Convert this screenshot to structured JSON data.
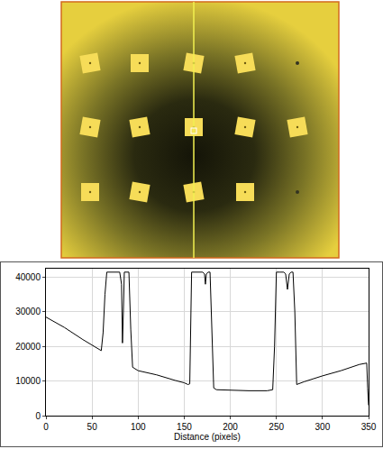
{
  "chart_data": {
    "type": "line",
    "x_label": "Distance (pixels)",
    "x": [
      0,
      20,
      40,
      58,
      60,
      62,
      64,
      66,
      68,
      72,
      76,
      80,
      82,
      83,
      84,
      85,
      86,
      88,
      90,
      92,
      94,
      100,
      120,
      140,
      150,
      154,
      156,
      158,
      162,
      166,
      170,
      172,
      173,
      174,
      176,
      178,
      180,
      182,
      185,
      200,
      220,
      240,
      246,
      248,
      250,
      254,
      258,
      260,
      262,
      264,
      266,
      268,
      270,
      272,
      280,
      300,
      320,
      340,
      348,
      349,
      350
    ],
    "values": [
      28500,
      25500,
      22000,
      19000,
      18800,
      24000,
      35000,
      41500,
      41500,
      41500,
      41500,
      41500,
      38000,
      21000,
      30000,
      41500,
      41500,
      41500,
      41500,
      25000,
      14000,
      13000,
      11800,
      10200,
      9500,
      9000,
      9200,
      41500,
      41500,
      41500,
      41500,
      41000,
      38000,
      41000,
      41500,
      41500,
      25000,
      8000,
      7500,
      7300,
      7200,
      7200,
      7500,
      20000,
      41500,
      41500,
      41500,
      41000,
      36500,
      41000,
      41500,
      41500,
      30000,
      9000,
      9800,
      11500,
      13000,
      14800,
      15200,
      8000,
      3000
    ],
    "color": "#000000",
    "xlim": [
      0,
      350
    ],
    "xticks": [
      0,
      50,
      100,
      150,
      200,
      250,
      300,
      350
    ],
    "ylim": [
      0,
      42500
    ],
    "yticks": [
      0,
      10000,
      20000,
      30000,
      40000
    ],
    "grid": true
  }
}
